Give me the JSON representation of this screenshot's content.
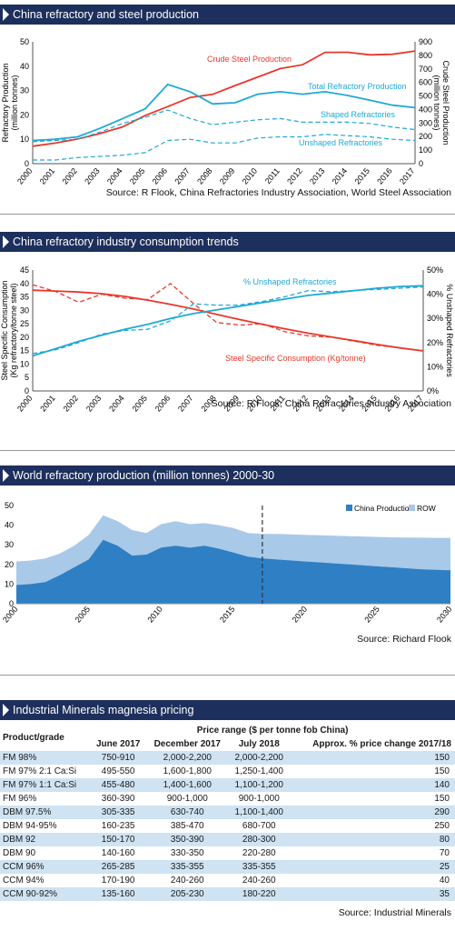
{
  "colors": {
    "header_bg": "#1d2f5c",
    "red": "#e8382b",
    "cyan": "#1fa9d6",
    "china_area": "#2f7fc4",
    "row_area": "#a9c9e8",
    "row_shade": "#cfe3f2"
  },
  "panel1": {
    "title": "China refractory and steel production",
    "ylabel_left": [
      "Refractory Production",
      "(million tonnes)"
    ],
    "ylabel_right": [
      "Crude Steel Production",
      "(million tonnes)"
    ],
    "left_ticks": [
      "0",
      "10",
      "20",
      "30",
      "40",
      "50"
    ],
    "right_ticks": [
      "0",
      "100",
      "200",
      "300",
      "400",
      "500",
      "600",
      "700",
      "800",
      "900"
    ],
    "x_ticks": [
      "2000",
      "2001",
      "2002",
      "2003",
      "2004",
      "2005",
      "2006",
      "2007",
      "2008",
      "2009",
      "2010",
      "2011",
      "2012",
      "2013",
      "2014",
      "2015",
      "2016",
      "2017"
    ],
    "series_labels": {
      "crude": "Crude Steel Production",
      "total": "Total Refractory Production",
      "shaped": "Shaped Refractories",
      "unshaped": "Unshaped Refractories"
    },
    "source": "Source: R Flook, China Refractories Industry Association, World Steel Association"
  },
  "panel2": {
    "title": "China refractory industry consumption trends",
    "ylabel_left": [
      "Steel Specific Consumption",
      "(Kg refractory/tonne steel)"
    ],
    "ylabel_right": [
      "% Unshaped Refractories"
    ],
    "left_ticks": [
      "0",
      "5",
      "10",
      "15",
      "20",
      "25",
      "30",
      "35",
      "40",
      "45"
    ],
    "right_ticks": [
      "0%",
      "10%",
      "20%",
      "30%",
      "40%",
      "50%"
    ],
    "x_ticks": [
      "2000",
      "2001",
      "2002",
      "2003",
      "2004",
      "2005",
      "2006",
      "2007",
      "2008",
      "2009",
      "2010",
      "2011",
      "2012",
      "2013",
      "2014",
      "2015",
      "2016",
      "2017"
    ],
    "series_labels": {
      "unshaped_pct": "% Unshaped Refractories",
      "ssc": "Steel Specific Consumption (Kg/tonne)"
    },
    "source": "Source: R Flook, China Refractories Industry Association"
  },
  "panel3": {
    "title": "World refractory production (million tonnes) 2000-30",
    "y_ticks": [
      "0",
      "10",
      "20",
      "30",
      "40",
      "50"
    ],
    "x_ticks": [
      "2000",
      "2005",
      "2010",
      "2015",
      "2020",
      "2025",
      "2030"
    ],
    "legend": {
      "china": "China Production",
      "row": "ROW"
    },
    "source": "Source: Richard Flook"
  },
  "panel4": {
    "title": "Industrial Minerals magnesia pricing",
    "header_group": "Price range ($ per tonne fob China)",
    "header_product": "Product/grade",
    "columns": [
      "June 2017",
      "December 2017",
      "July 2018",
      "Approx. % price change 2017/18"
    ],
    "rows": [
      [
        "FM 98%",
        "750-910",
        "2,000-2,200",
        "2,000-2,200",
        "150"
      ],
      [
        "FM 97% 2:1 Ca:Si",
        "495-550",
        "1,600-1,800",
        "1,250-1,400",
        "150"
      ],
      [
        "FM 97% 1:1 Ca:Si",
        "455-480",
        "1,400-1,600",
        "1,100-1,200",
        "140"
      ],
      [
        "FM 96%",
        "360-390",
        "900-1,000",
        "900-1,000",
        "150"
      ],
      [
        "DBM 97.5%",
        "305-335",
        "630-740",
        "1,100-1,400",
        "290"
      ],
      [
        "DBM 94-95%",
        "160-235",
        "385-470",
        "680-700",
        "250"
      ],
      [
        "DBM 92",
        "150-170",
        "350-390",
        "280-300",
        "80"
      ],
      [
        "DBM 90",
        "140-160",
        "330-350",
        "220-280",
        "70"
      ],
      [
        "CCM 96%",
        "265-285",
        "335-355",
        "335-355",
        "25"
      ],
      [
        "CCM 94%",
        "170-190",
        "240-260",
        "240-260",
        "40"
      ],
      [
        "CCM 90-92%",
        "135-160",
        "205-230",
        "180-220",
        "35"
      ]
    ],
    "source": "Source: Industrial Minerals"
  },
  "chart_data": [
    {
      "type": "line",
      "title": "China refractory and steel production",
      "x": [
        2000,
        2001,
        2002,
        2003,
        2004,
        2005,
        2006,
        2007,
        2008,
        2009,
        2010,
        2011,
        2012,
        2013,
        2014,
        2015,
        2016,
        2017
      ],
      "ylabel": "Refractory Production (million tonnes)",
      "ylim": [
        0,
        50
      ],
      "y2label": "Crude Steel Production (million tonnes)",
      "y2lim": [
        0,
        900
      ],
      "series": [
        {
          "name": "Crude Steel Production",
          "axis": "right",
          "style": "solid",
          "color": "#e8382b",
          "values": [
            129,
            152,
            182,
            222,
            272,
            355,
            421,
            489,
            512,
            577,
            639,
            702,
            731,
            822,
            823,
            804,
            808,
            832
          ]
        },
        {
          "name": "Total Refractory Production",
          "axis": "left",
          "style": "solid",
          "color": "#1fa9d6",
          "values": [
            9.5,
            10,
            11,
            14.5,
            18.5,
            22.5,
            32.5,
            29.5,
            24.5,
            25,
            28.5,
            29.5,
            28.5,
            29.5,
            28,
            26,
            24,
            23
          ]
        },
        {
          "name": "Shaped Refractories",
          "axis": "left",
          "style": "dashed",
          "color": "#1fa9d6",
          "values": [
            9,
            9.5,
            10,
            13,
            16.5,
            19,
            22,
            18.5,
            16,
            17,
            18,
            18.5,
            17,
            17,
            17,
            16.5,
            15,
            14
          ]
        },
        {
          "name": "Unshaped Refractories",
          "axis": "left",
          "style": "dashed",
          "color": "#1fa9d6",
          "values": [
            1.5,
            1.5,
            2.5,
            3,
            3.5,
            4.5,
            9.5,
            10,
            8.5,
            8.5,
            10.5,
            11,
            11,
            12,
            11.5,
            11,
            10,
            9.5
          ]
        }
      ]
    },
    {
      "type": "line",
      "title": "China refractory industry consumption trends",
      "x": [
        2000,
        2001,
        2002,
        2003,
        2004,
        2005,
        2006,
        2007,
        2008,
        2009,
        2010,
        2011,
        2012,
        2013,
        2014,
        2015,
        2016,
        2017
      ],
      "ylabel": "Steel Specific Consumption (Kg refractory/tonne steel)",
      "ylim": [
        0,
        45
      ],
      "y2label": "% Unshaped Refractories",
      "y2lim": [
        0,
        50
      ],
      "series": [
        {
          "name": "Steel Specific Consumption (Kg/tonne)",
          "axis": "left",
          "style": "solid",
          "color": "#e8382b",
          "values": [
            37.5,
            37.2,
            36.8,
            36.2,
            35.2,
            33.8,
            32.2,
            30.5,
            28.5,
            26.6,
            24.8,
            23.1,
            21.5,
            20.1,
            18.7,
            17.3,
            16,
            14.9
          ]
        },
        {
          "name": "Steel Specific Consumption (Kg/tonne)",
          "axis": "left",
          "style": "dashed",
          "color": "#e8382b",
          "values": [
            39.5,
            37,
            33,
            36,
            34.5,
            34,
            40,
            32.5,
            25.5,
            24.5,
            25,
            22,
            20.5,
            20,
            18.5,
            17,
            16,
            15
          ]
        },
        {
          "name": "% Unshaped Refractories",
          "axis": "right",
          "style": "solid",
          "color": "#1fa9d6",
          "values": [
            14.5,
            17.5,
            20.5,
            23,
            25.5,
            27.5,
            30,
            32,
            33.5,
            35,
            36.5,
            38,
            39.5,
            40.5,
            41.5,
            42.5,
            43.2,
            43.5
          ]
        },
        {
          "name": "% Unshaped Refractories",
          "axis": "right",
          "style": "dashed",
          "color": "#1fa9d6",
          "values": [
            15.5,
            17,
            20,
            23.5,
            25,
            25.5,
            29,
            36,
            35.5,
            35.5,
            37,
            39,
            41.5,
            41,
            41.5,
            42,
            42.5,
            43
          ]
        }
      ]
    },
    {
      "type": "area",
      "title": "World refractory production (million tonnes) 2000-30",
      "x": [
        2000,
        2001,
        2002,
        2003,
        2004,
        2005,
        2006,
        2007,
        2008,
        2009,
        2010,
        2011,
        2012,
        2013,
        2014,
        2015,
        2016,
        2017,
        2018,
        2019,
        2020,
        2021,
        2022,
        2023,
        2024,
        2025,
        2026,
        2027,
        2028,
        2029,
        2030
      ],
      "ylim": [
        0,
        50
      ],
      "series": [
        {
          "name": "China Production",
          "color": "#2f7fc4",
          "values": [
            9.5,
            10,
            11,
            14.5,
            18.5,
            22.5,
            32.5,
            29.5,
            24.5,
            25,
            28.5,
            29.5,
            28.5,
            29.5,
            28,
            26,
            24,
            23,
            22.5,
            22,
            21.5,
            21,
            20.5,
            20,
            19.5,
            19,
            18.5,
            18,
            17.5,
            17.2,
            17
          ]
        },
        {
          "name": "ROW",
          "color": "#a9c9e8",
          "values": [
            21.5,
            22,
            23,
            25.5,
            29.5,
            35,
            45,
            42,
            37.5,
            36,
            40.5,
            42,
            40.5,
            41,
            40,
            38.5,
            36,
            35.5,
            35.5,
            35.3,
            35,
            34.8,
            34.6,
            34.4,
            34.2,
            34,
            33.8,
            33.7,
            33.6,
            33.5,
            33.5
          ]
        }
      ],
      "annotations": [
        "vertical dashed line at 2017"
      ]
    }
  ]
}
